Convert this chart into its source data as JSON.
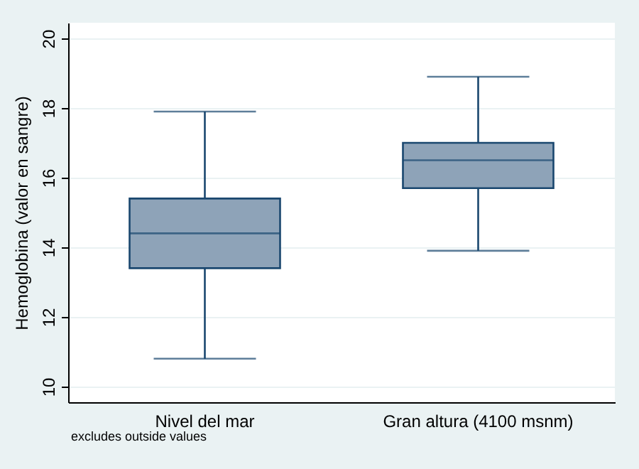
{
  "chart_data": {
    "type": "box",
    "ylabel": "Hemoglobina (valor en sangre)",
    "categories": [
      "Nivel del mar",
      "Gran altura (4100 msnm)"
    ],
    "boxes": [
      {
        "low": 10.8,
        "q1": 13.4,
        "median": 14.4,
        "q3": 15.4,
        "high": 17.9
      },
      {
        "low": 13.9,
        "q1": 15.7,
        "median": 16.5,
        "q3": 17.0,
        "high": 18.9
      }
    ],
    "colors": [
      "#8ea3b8",
      "#8ea3b8"
    ],
    "ylim": [
      9.55,
      20.45
    ],
    "yticks": [
      10,
      12,
      14,
      16,
      18,
      20
    ],
    "grid": "y",
    "annotations": [
      "excludes outside values"
    ]
  }
}
